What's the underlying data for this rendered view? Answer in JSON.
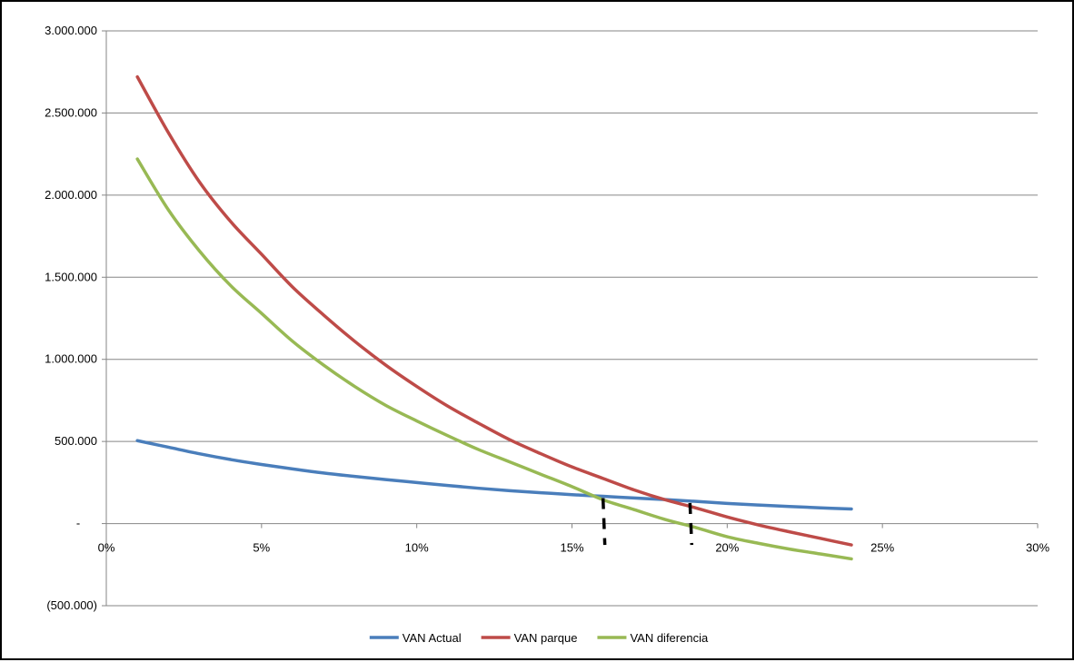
{
  "chart_data": {
    "type": "line",
    "title": "",
    "xlabel": "",
    "ylabel": "",
    "xlim": [
      0,
      0.3
    ],
    "ylim": [
      -500000,
      3000000
    ],
    "grid": "horizontal",
    "legend_position": "bottom",
    "x_ticks": [
      {
        "value": 0.0,
        "label": "0%"
      },
      {
        "value": 0.05,
        "label": "5%"
      },
      {
        "value": 0.1,
        "label": "10%"
      },
      {
        "value": 0.15,
        "label": "15%"
      },
      {
        "value": 0.2,
        "label": "20%"
      },
      {
        "value": 0.25,
        "label": "25%"
      },
      {
        "value": 0.3,
        "label": "30%"
      }
    ],
    "y_ticks": [
      {
        "value": 3000000,
        "label": "3.000.000"
      },
      {
        "value": 2500000,
        "label": "2.500.000"
      },
      {
        "value": 2000000,
        "label": "2.000.000"
      },
      {
        "value": 1500000,
        "label": "1.500.000"
      },
      {
        "value": 1000000,
        "label": "1.000.000"
      },
      {
        "value": 500000,
        "label": "500.000"
      },
      {
        "value": 0,
        "label": "-"
      },
      {
        "value": -500000,
        "label": "(500.000)"
      }
    ],
    "series": [
      {
        "name": "VAN Actual",
        "color": "#4a7ebb",
        "x": [
          0.01,
          0.02,
          0.03,
          0.04,
          0.05,
          0.06,
          0.07,
          0.08,
          0.09,
          0.1,
          0.11,
          0.12,
          0.13,
          0.14,
          0.15,
          0.16,
          0.17,
          0.18,
          0.19,
          0.2,
          0.21,
          0.22,
          0.23,
          0.24
        ],
        "y": [
          505000,
          465000,
          425000,
          390000,
          360000,
          333000,
          308000,
          287000,
          268000,
          250000,
          232000,
          215000,
          200000,
          188000,
          176000,
          166000,
          156000,
          146000,
          135000,
          123000,
          113000,
          104000,
          96000,
          89000
        ]
      },
      {
        "name": "VAN parque",
        "color": "#be4b48",
        "x": [
          0.01,
          0.02,
          0.03,
          0.04,
          0.05,
          0.06,
          0.07,
          0.08,
          0.09,
          0.1,
          0.11,
          0.12,
          0.13,
          0.14,
          0.15,
          0.16,
          0.17,
          0.18,
          0.19,
          0.2,
          0.21,
          0.22,
          0.23,
          0.24
        ],
        "y": [
          2720000,
          2380000,
          2080000,
          1840000,
          1640000,
          1440000,
          1270000,
          1110000,
          965000,
          835000,
          715000,
          610000,
          510000,
          425000,
          345000,
          275000,
          205000,
          145000,
          95000,
          40000,
          -8000,
          -50000,
          -90000,
          -130000
        ]
      },
      {
        "name": "VAN diferencia",
        "color": "#98b954",
        "x": [
          0.01,
          0.02,
          0.03,
          0.04,
          0.05,
          0.06,
          0.07,
          0.08,
          0.09,
          0.1,
          0.11,
          0.12,
          0.13,
          0.14,
          0.15,
          0.16,
          0.17,
          0.18,
          0.19,
          0.2,
          0.21,
          0.22,
          0.23,
          0.24
        ],
        "y": [
          2220000,
          1910000,
          1660000,
          1450000,
          1280000,
          1110000,
          965000,
          835000,
          720000,
          625000,
          535000,
          450000,
          375000,
          300000,
          225000,
          145000,
          85000,
          25000,
          -25000,
          -80000,
          -120000,
          -155000,
          -185000,
          -215000
        ]
      }
    ],
    "annotations": [
      {
        "type": "dashed-vertical",
        "x": 0.16,
        "y_from": 155000,
        "y_to": -130000,
        "color": "#000000"
      },
      {
        "type": "dashed-vertical",
        "x": 0.188,
        "y_from": 125000,
        "y_to": -130000,
        "color": "#000000"
      }
    ]
  }
}
